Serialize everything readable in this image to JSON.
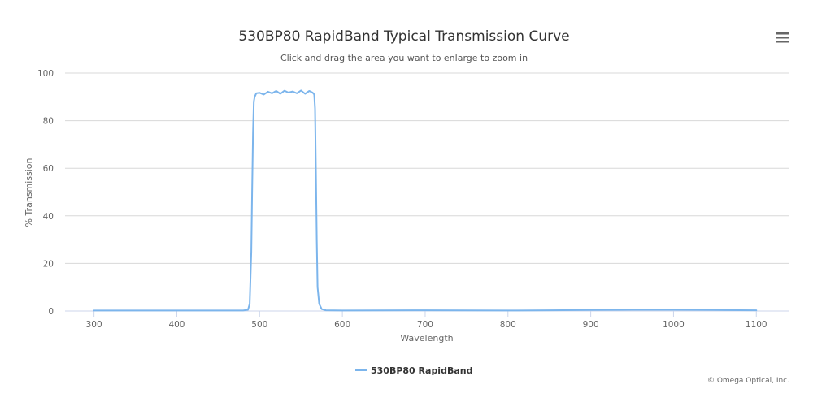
{
  "chart_data": {
    "type": "line",
    "title": "530BP80 RapidBand Typical Transmission Curve",
    "subtitle": "Click and drag the area you want to enlarge to zoom in",
    "xlabel": "Wavelength",
    "ylabel": "% Transmission",
    "xlim": [
      265,
      1140
    ],
    "ylim": [
      0,
      100
    ],
    "xticks": [
      300,
      400,
      500,
      600,
      700,
      800,
      900,
      1000,
      1100
    ],
    "yticks": [
      0,
      20,
      40,
      60,
      80,
      100
    ],
    "grid": "horizontal",
    "legend_position": "bottom-center",
    "credits": "© Omega Optical, Inc.",
    "colors": {
      "series": "#7cb5ec",
      "grid": "#d8d8d8",
      "text": "#333333"
    },
    "series": [
      {
        "name": "530BP80 RapidBand",
        "x": [
          300,
          400,
          480,
          486,
          488,
          490,
          491,
          492,
          493,
          494,
          496,
          500,
          505,
          510,
          515,
          520,
          525,
          530,
          535,
          540,
          545,
          550,
          555,
          560,
          564,
          566,
          567,
          568,
          569,
          570,
          572,
          575,
          580,
          600,
          700,
          800,
          850,
          900,
          950,
          1000,
          1050,
          1100
        ],
        "y": [
          0.2,
          0.2,
          0.2,
          0.5,
          3,
          25,
          50,
          75,
          88,
          90,
          91.5,
          91.7,
          91.0,
          92.2,
          91.5,
          92.5,
          91.3,
          92.6,
          91.8,
          92.3,
          91.5,
          92.7,
          91.3,
          92.5,
          91.8,
          91.0,
          85,
          60,
          30,
          10,
          3,
          0.8,
          0.3,
          0.2,
          0.3,
          0.2,
          0.3,
          0.4,
          0.5,
          0.5,
          0.4,
          0.3
        ]
      }
    ]
  },
  "ui": {
    "menu_icon": "hamburger-menu-icon"
  }
}
